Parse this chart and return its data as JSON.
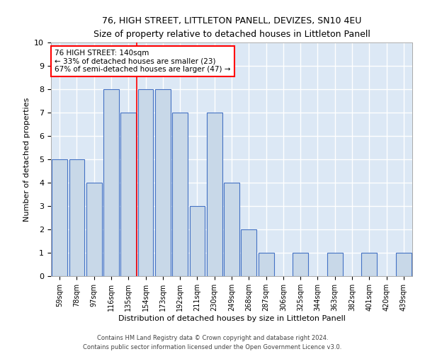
{
  "title": "76, HIGH STREET, LITTLETON PANELL, DEVIZES, SN10 4EU",
  "subtitle": "Size of property relative to detached houses in Littleton Panell",
  "xlabel": "Distribution of detached houses by size in Littleton Panell",
  "ylabel": "Number of detached properties",
  "footer1": "Contains HM Land Registry data © Crown copyright and database right 2024.",
  "footer2": "Contains public sector information licensed under the Open Government Licence v3.0.",
  "categories": [
    "59sqm",
    "78sqm",
    "97sqm",
    "116sqm",
    "135sqm",
    "154sqm",
    "173sqm",
    "192sqm",
    "211sqm",
    "230sqm",
    "249sqm",
    "268sqm",
    "287sqm",
    "306sqm",
    "325sqm",
    "344sqm",
    "363sqm",
    "382sqm",
    "401sqm",
    "420sqm",
    "439sqm"
  ],
  "values": [
    5,
    5,
    4,
    8,
    7,
    8,
    8,
    7,
    3,
    7,
    4,
    2,
    1,
    0,
    1,
    0,
    1,
    0,
    1,
    0,
    1
  ],
  "bar_color": "#c8d8e8",
  "bar_edge_color": "#4472c4",
  "background_color": "#dce8f5",
  "grid_color": "#ffffff",
  "annotation_text": "76 HIGH STREET: 140sqm\n← 33% of detached houses are smaller (23)\n67% of semi-detached houses are larger (47) →",
  "annotation_box_color": "white",
  "annotation_box_edge": "red",
  "redline_x": 4.5,
  "ylim": [
    0,
    10
  ],
  "yticks": [
    0,
    1,
    2,
    3,
    4,
    5,
    6,
    7,
    8,
    9,
    10
  ]
}
